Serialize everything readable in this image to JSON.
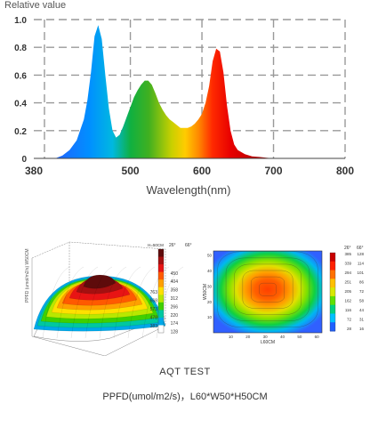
{
  "chart_data": [
    {
      "type": "area",
      "ylabel": "Relative value",
      "xlabel": "Wavelength(nm)",
      "xlim": [
        380,
        800
      ],
      "ylim": [
        0,
        1.0
      ],
      "x_ticks": [
        "380",
        "500",
        "600",
        "700",
        "800"
      ],
      "y_ticks": [
        "0",
        "0.2",
        "0.4",
        "0.6",
        "0.8",
        "1.0"
      ],
      "grid": true,
      "fill": "spectral",
      "series": [
        {
          "x": [
            395,
            405,
            415,
            425,
            435,
            440,
            445,
            450,
            455,
            460,
            465,
            470,
            475,
            480,
            485,
            490,
            495,
            500,
            505,
            510,
            515,
            520,
            525,
            530,
            535,
            540,
            545,
            550,
            555,
            560,
            565,
            570,
            575,
            580,
            585,
            590,
            595,
            600,
            605,
            610,
            615,
            620,
            625,
            630,
            635,
            640,
            645,
            650,
            660,
            670,
            680,
            690,
            700
          ],
          "values": [
            0.0,
            0.02,
            0.06,
            0.13,
            0.28,
            0.42,
            0.62,
            0.88,
            0.96,
            0.86,
            0.6,
            0.36,
            0.2,
            0.15,
            0.17,
            0.23,
            0.3,
            0.37,
            0.44,
            0.49,
            0.53,
            0.56,
            0.56,
            0.53,
            0.47,
            0.4,
            0.35,
            0.31,
            0.28,
            0.26,
            0.24,
            0.22,
            0.22,
            0.22,
            0.23,
            0.25,
            0.28,
            0.32,
            0.4,
            0.52,
            0.7,
            0.79,
            0.77,
            0.62,
            0.38,
            0.2,
            0.1,
            0.06,
            0.03,
            0.015,
            0.01,
            0.005,
            0.0
          ]
        }
      ]
    },
    {
      "type": "surface",
      "color_scale_header": [
        "H=50CM",
        "26°",
        "66°"
      ],
      "color_scale_26": [
        "",
        "",
        "450",
        "404",
        "358",
        "312",
        "266",
        "220",
        "174",
        "128"
      ],
      "color_scale_66": [
        "763",
        "668",
        "573",
        "478",
        "383"
      ],
      "colors": [
        "#5e0b0b",
        "#a41010",
        "#e81414",
        "#ff5a00",
        "#ffa000",
        "#ffe000",
        "#b8e800",
        "#3fd000",
        "#00c8a0",
        "#00a8e8",
        "#ffffff"
      ]
    },
    {
      "type": "heatmap",
      "xlabel": "L60CM",
      "ylabel": "W50CM",
      "x_ticks": [
        "10",
        "20",
        "30",
        "40",
        "50",
        "60"
      ],
      "y_ticks": [
        "10",
        "20",
        "30",
        "40",
        "50"
      ],
      "color_scale_header": [
        "26°",
        "66°"
      ],
      "color_scale_26": [
        "385",
        "339",
        "294",
        "251",
        "205",
        "162",
        "116",
        "72",
        "28"
      ],
      "color_scale_66": [
        "128",
        "114",
        "101",
        "86",
        "72",
        "58",
        "44",
        "31",
        "16"
      ]
    }
  ],
  "footer": {
    "title": "AQT   TEST",
    "subtitle": "PPFD(umol/m2/s)，L60*W50*H50CM"
  }
}
